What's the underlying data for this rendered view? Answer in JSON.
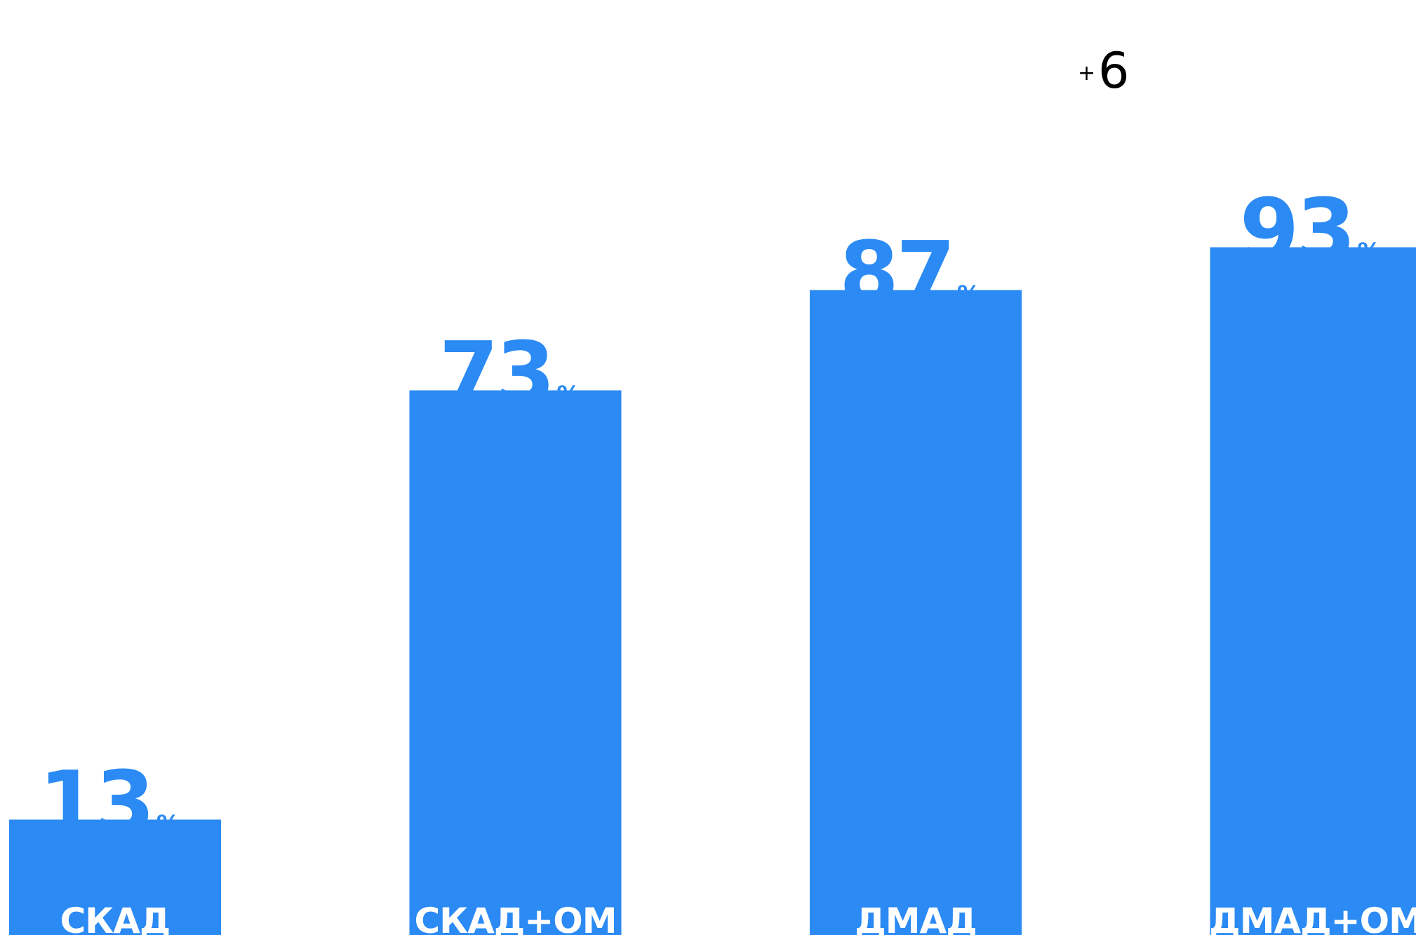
{
  "chart_data": {
    "type": "bar",
    "categories": [
      "СКАД",
      "СКАД+ОМ",
      "ДМАД",
      "ДМАД+ОМ"
    ],
    "values": [
      13,
      73,
      87,
      93
    ],
    "value_unit": "%",
    "ylim": [
      0,
      100
    ],
    "grid": false,
    "annotations": [
      {
        "text_prefix": "+",
        "text": "6",
        "between": [
          "ДМАД",
          "ДМАД+ОМ"
        ]
      }
    ],
    "colors": {
      "bar": "#2B8AF3",
      "value_text": "#2B8AF3",
      "category_text": "#FFFFFF",
      "annotation_text": "#000000",
      "background": "#FFFFFF"
    }
  }
}
